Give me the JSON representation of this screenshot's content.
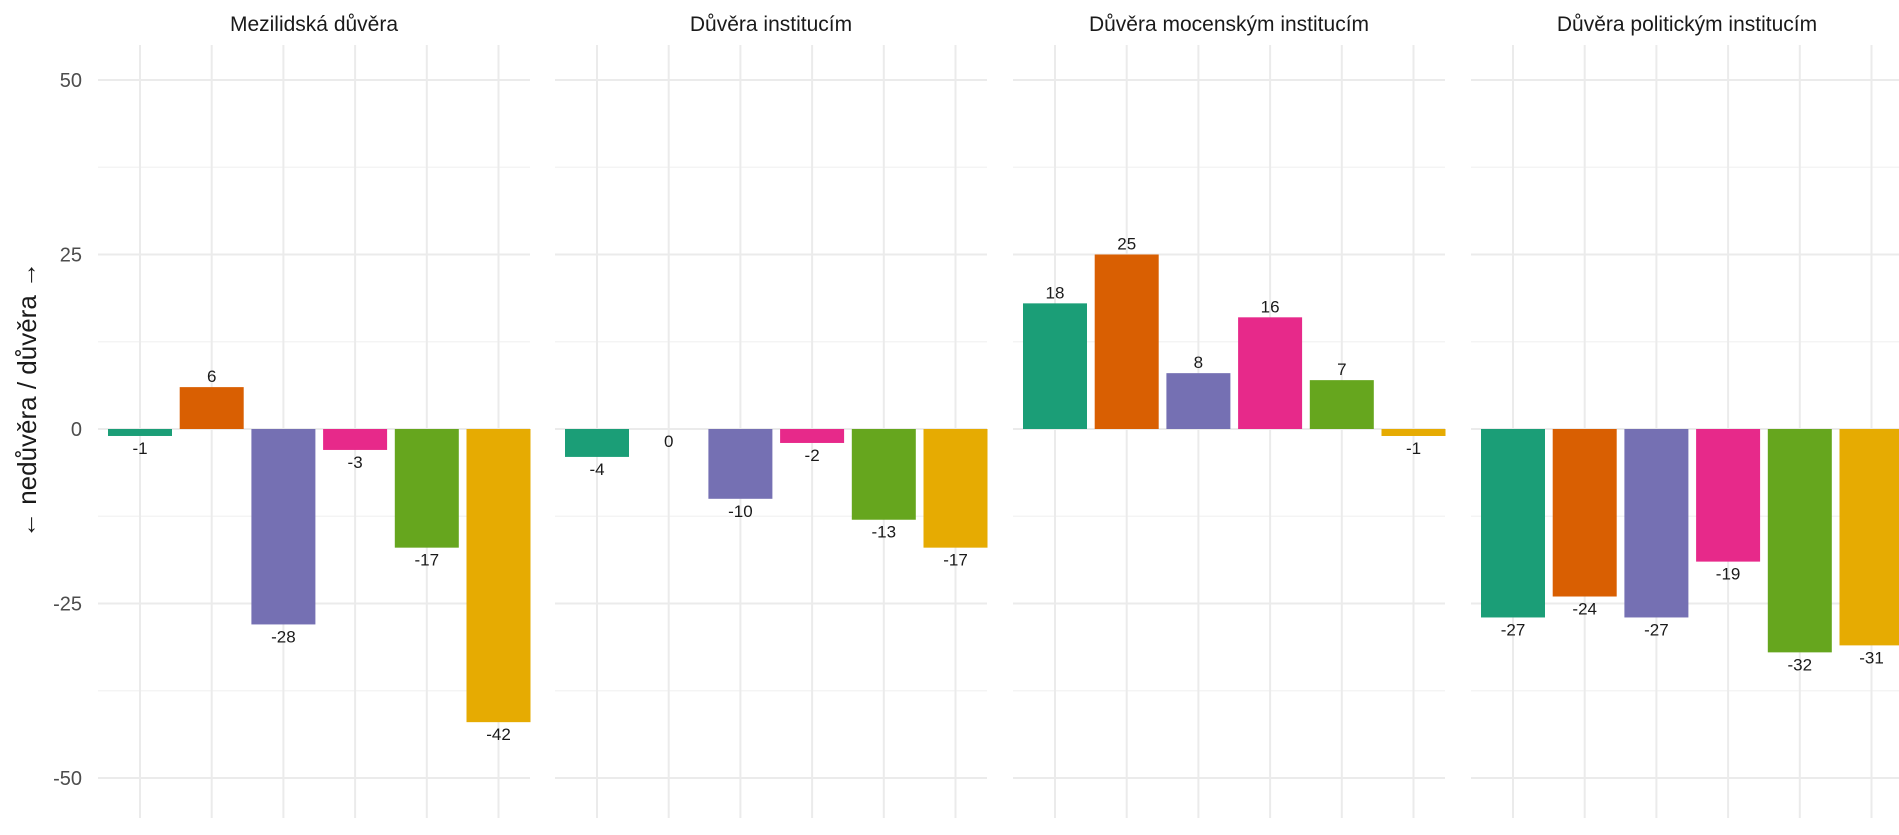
{
  "chart_data": {
    "type": "bar",
    "ylabel": "← nedůvěra / důvěra →",
    "ylim": [
      -52,
      55
    ],
    "yticks": [
      50,
      25,
      0,
      -25,
      -50
    ],
    "ytick_labels": [
      "50",
      "25",
      "0",
      "-25",
      "-50"
    ],
    "grid": true,
    "legend": "none",
    "colors": [
      "#1b9e77",
      "#d95f02",
      "#7570b3",
      "#e7298a",
      "#66a61e",
      "#e6ab02"
    ],
    "panels": [
      {
        "title": "Mezilidská důvěra",
        "values": [
          -1,
          6,
          -28,
          -3,
          -17,
          -42
        ],
        "labels": [
          "-1",
          "6",
          "-28",
          "-3",
          "-17",
          "-42"
        ]
      },
      {
        "title": "Důvěra institucím",
        "values": [
          -4,
          0,
          -10,
          -2,
          -13,
          -17
        ],
        "labels": [
          "-4",
          "0",
          "-10",
          "-2",
          "-13",
          "-17"
        ]
      },
      {
        "title": "Důvěra mocenským institucím",
        "values": [
          18,
          25,
          8,
          16,
          7,
          -1
        ],
        "labels": [
          "18",
          "25",
          "8",
          "16",
          "7",
          "-1"
        ]
      },
      {
        "title": "Důvěra politickým institucím",
        "values": [
          -27,
          -24,
          -27,
          -19,
          -32,
          -31
        ],
        "labels": [
          "-27",
          "-24",
          "-27",
          "-19",
          "-32",
          "-31"
        ]
      }
    ]
  }
}
